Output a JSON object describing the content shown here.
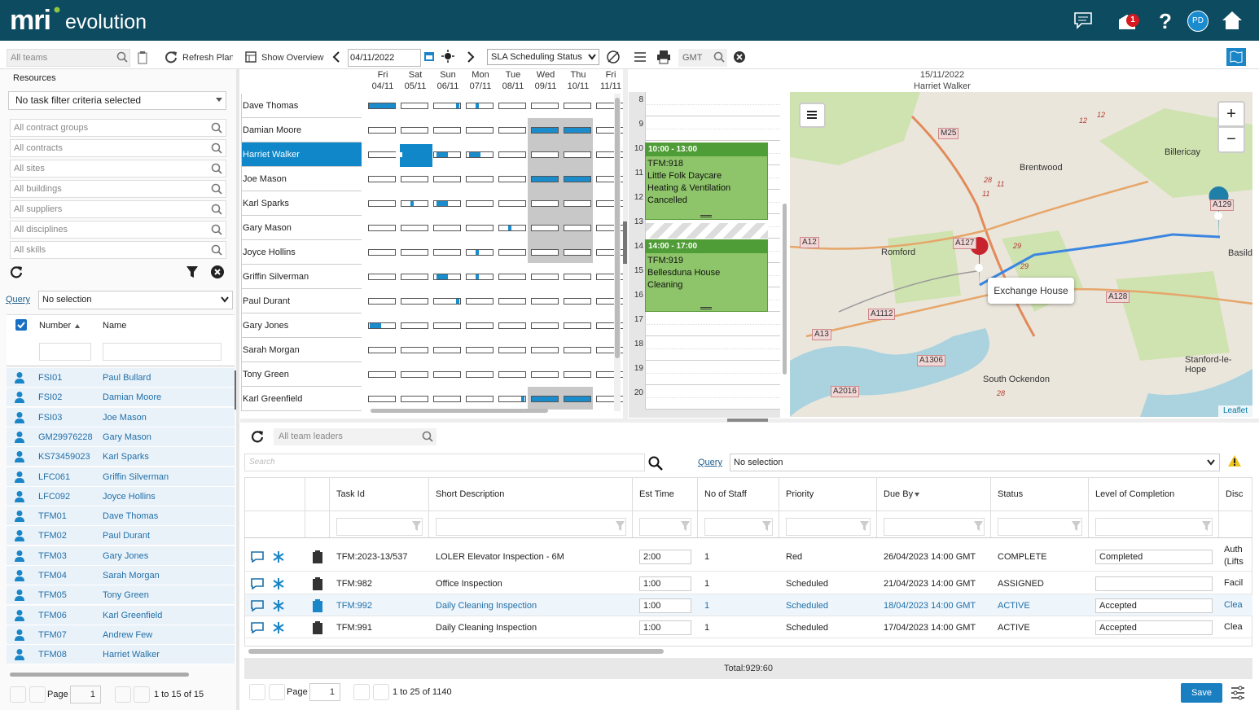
{
  "header": {
    "logo_mark": "mri",
    "logo_text": "evolution",
    "notification_count": "1",
    "help": "?",
    "user_initials": "PD"
  },
  "toolbar": {
    "team_filter": "All teams",
    "refresh": "Refresh Plan",
    "overview": "Show Overview",
    "date": "04/11/2022",
    "status_view": "SLA Scheduling Status",
    "timezone": "GMT"
  },
  "resources": {
    "title": "Resources",
    "task_filter": "No task filter criteria selected",
    "filters": [
      "All contract groups",
      "All contracts",
      "All sites",
      "All buildings",
      "All suppliers",
      "All disciplines",
      "All skills"
    ],
    "query_label": "Query",
    "query_value": "No selection",
    "columns": [
      "Number",
      "Name"
    ],
    "rows": [
      [
        "FSI01",
        "Paul Bullard"
      ],
      [
        "FSI02",
        "Damian Moore"
      ],
      [
        "FSI03",
        "Joe Mason"
      ],
      [
        "GM29976228",
        "Gary Mason"
      ],
      [
        "KS73459023",
        "Karl Sparks"
      ],
      [
        "LFC061",
        "Griffin Silverman"
      ],
      [
        "LFC092",
        "Joyce Hollins"
      ],
      [
        "TFM01",
        "Dave Thomas"
      ],
      [
        "TFM02",
        "Paul Durant"
      ],
      [
        "TFM03",
        "Gary Jones"
      ],
      [
        "TFM04",
        "Sarah Morgan"
      ],
      [
        "TFM05",
        "Tony Green"
      ],
      [
        "TFM06",
        "Karl Greenfield"
      ],
      [
        "TFM07",
        "Andrew Few"
      ],
      [
        "TFM08",
        "Harriet Walker"
      ]
    ],
    "pager": {
      "page_label": "Page",
      "page": "1",
      "summary": "1 to 15 of 15"
    }
  },
  "planner": {
    "days": [
      {
        "day": "Fri",
        "date": "04/11"
      },
      {
        "day": "Sat",
        "date": "05/11"
      },
      {
        "day": "Sun",
        "date": "06/11"
      },
      {
        "day": "Mon",
        "date": "07/11"
      },
      {
        "day": "Tue",
        "date": "08/11"
      },
      {
        "day": "Wed",
        "date": "09/11"
      },
      {
        "day": "Thu",
        "date": "10/11"
      },
      {
        "day": "Fri",
        "date": "11/11"
      }
    ],
    "resources": [
      "Dave Thomas",
      "Damian Moore",
      "Harriet Walker",
      "Joe Mason",
      "Karl Sparks",
      "Gary Mason",
      "Joyce Hollins",
      "Griffin Silverman",
      "Paul Durant",
      "Gary Jones",
      "Sarah Morgan",
      "Tony Green",
      "Karl Greenfield"
    ]
  },
  "day_view": {
    "date": "15/11/2022",
    "resource": "Harriet Walker",
    "hours": [
      "8",
      "9",
      "10",
      "11",
      "12",
      "13",
      "14",
      "15",
      "16",
      "17",
      "18",
      "19",
      "20"
    ],
    "appointments": [
      {
        "time": "10:00 - 13:00",
        "lines": [
          "TFM:918",
          "Little Folk Daycare",
          "Heating & Ventilation",
          "Cancelled"
        ]
      },
      {
        "time": "14:00 - 17:00",
        "lines": [
          "TFM:919",
          "Bellesduna House",
          "Cleaning"
        ]
      }
    ]
  },
  "map": {
    "labels": [
      "M25",
      "Brentwood",
      "Billericay",
      "A129",
      "Romford",
      "A12",
      "A127",
      "Basild",
      "A128",
      "A1112",
      "A13",
      "A1306",
      "South Ockendon",
      "Stanford-le-Hope",
      "A2016",
      "12",
      "12",
      "28",
      "11",
      "11",
      "29",
      "29",
      "28"
    ],
    "popup": "Exchange House",
    "zoom_in": "+",
    "zoom_out": "−",
    "attribution": "Leaflet"
  },
  "tasks": {
    "team_leaders": "All team leaders",
    "search": "Search",
    "query_label": "Query",
    "query_value": "No selection",
    "columns": [
      "Task Id",
      "Short Description",
      "Est Time",
      "No of Staff",
      "Priority",
      "Due By",
      "Status",
      "Level of Completion",
      "Disc"
    ],
    "rows": [
      [
        "TFM:2023-13/537",
        "LOLER Elevator Inspection - 6M",
        "2:00",
        "1",
        "Red",
        "26/04/2023 14:00 GMT",
        "COMPLETE",
        "Completed",
        "Auth (Lifts"
      ],
      [
        "TFM:982",
        "Office Inspection",
        "1:00",
        "1",
        "Scheduled",
        "21/04/2023 14:00 GMT",
        "ASSIGNED",
        null,
        "Facil"
      ],
      [
        "TFM:992",
        "Daily Cleaning Inspection",
        "1:00",
        "1",
        "Scheduled",
        "18/04/2023 14:00 GMT",
        "ACTIVE",
        "Accepted",
        "Clea"
      ],
      [
        "TFM:991",
        "Daily Cleaning Inspection",
        "1:00",
        "1",
        "Scheduled",
        "17/04/2023 14:00 GMT",
        "ACTIVE",
        "Accepted",
        "Clea"
      ]
    ],
    "total": "Total:929:60",
    "pager": {
      "page_label": "Page",
      "page": "1",
      "summary": "1 to 25 of 1140"
    },
    "save": "Save"
  }
}
